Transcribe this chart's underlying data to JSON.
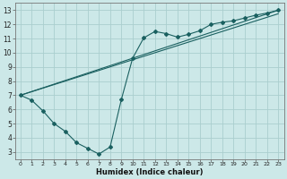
{
  "title": "",
  "xlabel": "Humidex (Indice chaleur)",
  "ylabel": "",
  "bg_color": "#cce8e8",
  "grid_color": "#aacece",
  "line_color": "#1a6060",
  "xlim": [
    -0.5,
    23.5
  ],
  "ylim": [
    2.5,
    13.5
  ],
  "xticks": [
    0,
    1,
    2,
    3,
    4,
    5,
    6,
    7,
    8,
    9,
    10,
    11,
    12,
    13,
    14,
    15,
    16,
    17,
    18,
    19,
    20,
    21,
    22,
    23
  ],
  "yticks": [
    3,
    4,
    5,
    6,
    7,
    8,
    9,
    10,
    11,
    12,
    13
  ],
  "line1_x": [
    0,
    1,
    2,
    3,
    4,
    5,
    6,
    7,
    8,
    9,
    10,
    11,
    12,
    13,
    14,
    15,
    16,
    17,
    18,
    19,
    20,
    21,
    22,
    23
  ],
  "line1_y": [
    7.0,
    6.65,
    5.9,
    5.0,
    4.45,
    3.65,
    3.25,
    2.85,
    3.35,
    6.7,
    9.6,
    11.05,
    11.5,
    11.35,
    11.1,
    11.3,
    11.55,
    12.0,
    12.15,
    12.25,
    12.45,
    12.65,
    12.8,
    13.0
  ],
  "line2_x": [
    0,
    23
  ],
  "line2_y": [
    7.0,
    13.0
  ],
  "line3_x": [
    0,
    23
  ],
  "line3_y": [
    7.0,
    12.75
  ]
}
